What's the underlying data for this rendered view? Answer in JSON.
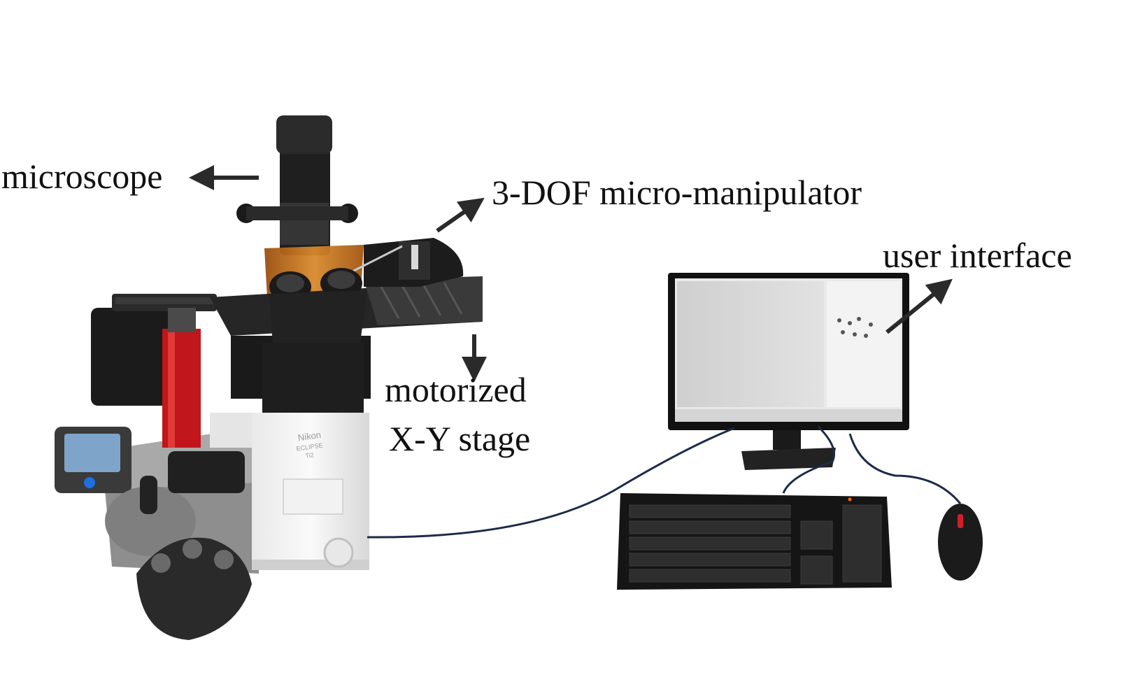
{
  "labels": {
    "microscope": "microscope",
    "manipulator": "3-DOF micro-manipulator",
    "user_interface": "user interface",
    "stage_line1": "motorized",
    "stage_line2": "X-Y stage"
  },
  "device_text": {
    "brand": "Nikon",
    "model": "ECLIPSE",
    "model_sub": "Ti2"
  },
  "colors": {
    "arrow": "#2a2a2a",
    "cable": "#1d2a4a",
    "frame_red": "#c0161c",
    "amber_shield": "#c8741c",
    "power_blue": "#1e6fe0",
    "mouse_red": "#d21d2a"
  }
}
